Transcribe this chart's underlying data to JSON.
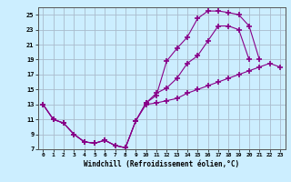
{
  "xlabel": "Windchill (Refroidissement éolien,°C)",
  "bg_color": "#cceeff",
  "line_color": "#880088",
  "grid_color": "#aabbcc",
  "xlim": [
    -0.5,
    23.5
  ],
  "ylim": [
    7,
    26
  ],
  "xticks": [
    0,
    1,
    2,
    3,
    4,
    5,
    6,
    7,
    8,
    9,
    10,
    11,
    12,
    13,
    14,
    15,
    16,
    17,
    18,
    19,
    20,
    21,
    22,
    23
  ],
  "yticks": [
    7,
    9,
    11,
    13,
    15,
    17,
    19,
    21,
    23,
    25
  ],
  "line1_x": [
    0,
    1,
    2,
    3,
    4,
    5,
    6,
    7,
    8,
    9,
    10,
    11,
    12,
    13,
    14,
    15,
    16,
    17,
    18,
    19,
    20,
    21
  ],
  "line1_y": [
    13.0,
    11.0,
    10.5,
    9.0,
    8.0,
    7.8,
    8.2,
    7.5,
    7.2,
    10.8,
    13.2,
    14.2,
    18.8,
    20.5,
    22.0,
    24.5,
    25.5,
    25.5,
    25.3,
    25.0,
    23.5,
    19.0
  ],
  "line2_x": [
    0,
    1,
    2,
    3,
    4,
    5,
    6,
    7,
    8,
    9,
    10,
    11,
    12,
    13,
    14,
    15,
    16,
    17,
    18,
    19,
    20
  ],
  "line2_y": [
    13.0,
    11.0,
    10.5,
    9.0,
    8.0,
    7.8,
    8.2,
    7.5,
    7.2,
    10.8,
    13.2,
    14.5,
    15.2,
    16.5,
    18.5,
    19.5,
    21.5,
    23.5,
    23.5,
    23.0,
    19.0
  ],
  "line3_x": [
    0,
    1,
    2,
    3,
    4,
    5,
    6,
    7,
    8,
    9,
    10,
    11,
    12,
    13,
    14,
    15,
    16,
    17,
    18,
    19,
    20,
    21,
    22,
    23
  ],
  "line3_y": [
    13.0,
    11.0,
    10.5,
    9.0,
    8.0,
    7.8,
    8.2,
    7.5,
    7.2,
    10.8,
    13.0,
    13.2,
    13.5,
    13.8,
    14.5,
    15.0,
    15.5,
    16.0,
    16.5,
    17.0,
    17.5,
    18.0,
    18.5,
    18.0
  ]
}
